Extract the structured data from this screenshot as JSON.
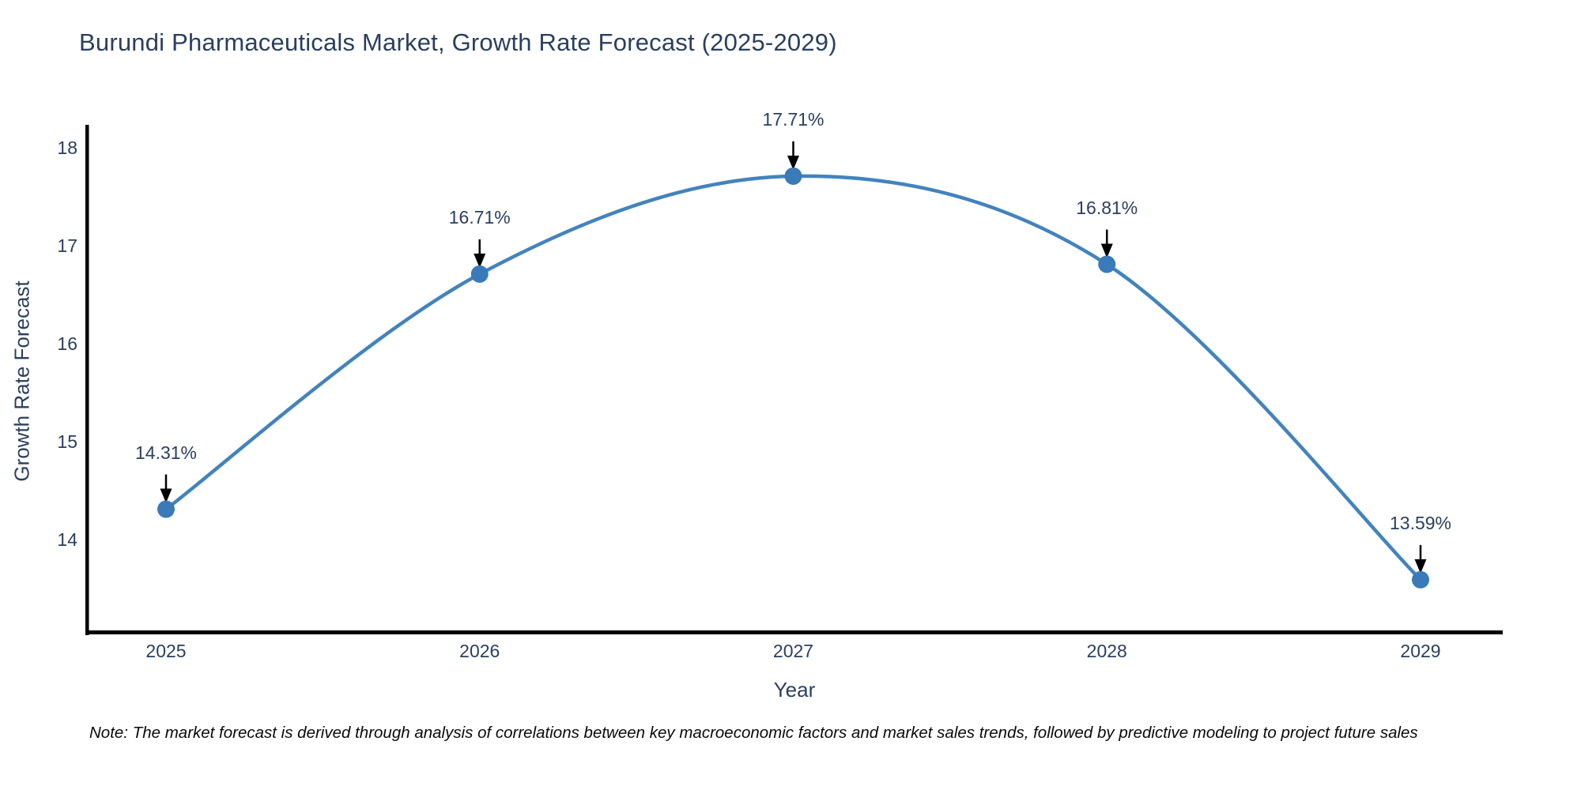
{
  "title": "Burundi Pharmaceuticals Market, Growth Rate Forecast (2025-2029)",
  "note": "Note: The market forecast is derived through analysis of correlations between key macroeconomic factors and market sales trends, followed by predictive modeling to project future sales",
  "colors": {
    "background": "#ffffff",
    "line": "#4383bd",
    "marker": "#3a7ab8",
    "title_text": "#2a3f5f",
    "axis_text": "#2a3f5f",
    "spine": "#000000",
    "arrow": "#000000",
    "note_text": "#0a0a0a"
  },
  "chart_data": {
    "type": "line",
    "x": [
      2025,
      2026,
      2027,
      2028,
      2029
    ],
    "values": [
      14.31,
      16.71,
      17.71,
      16.81,
      13.59
    ],
    "point_labels": [
      "14.31%",
      "16.71%",
      "17.71%",
      "16.81%",
      "13.59%"
    ],
    "title": "Burundi Pharmaceuticals Market, Growth Rate Forecast (2025-2029)",
    "xlabel": "Year",
    "ylabel": "Growth Rate Forecast",
    "xticks": [
      "2025",
      "2026",
      "2027",
      "2028",
      "2029"
    ],
    "yticks": [
      14,
      15,
      16,
      17,
      18
    ],
    "ylim": [
      13.06,
      18.22
    ],
    "xlim": [
      2024.75,
      2029.26
    ],
    "grid": false,
    "legend": false,
    "line_shape": "spline",
    "markers": true,
    "annotation_arrows": true
  }
}
